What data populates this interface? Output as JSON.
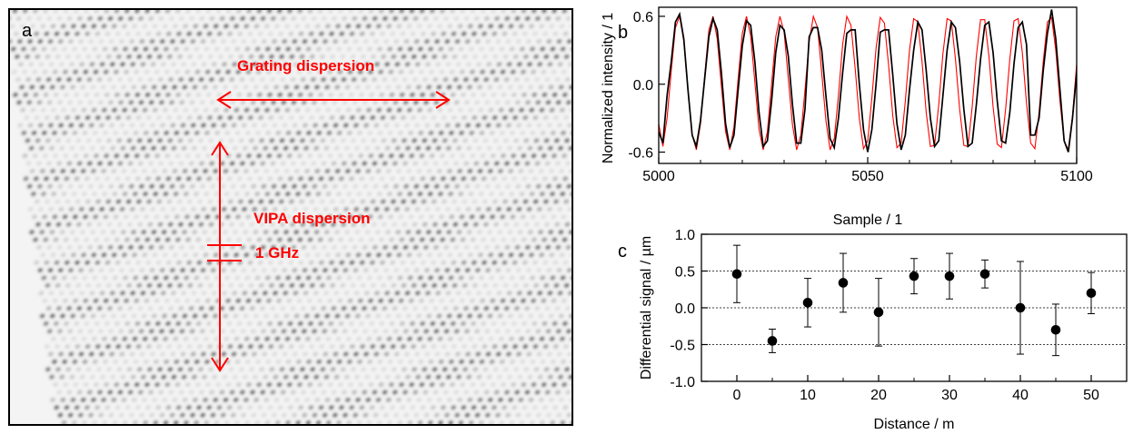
{
  "panels": {
    "a": {
      "letter": "a"
    },
    "b": {
      "letter": "b"
    },
    "c": {
      "letter": "c"
    }
  },
  "annotations": {
    "grating": "Grating dispersion",
    "vipa": "VIPA dispersion",
    "ghz": "1 GHz"
  },
  "colors": {
    "annotation": "#ff0000",
    "measured": "#000000",
    "fit": "#ff0000"
  },
  "chart_data": [
    {
      "type": "image",
      "panel": "a",
      "description_free": true
    },
    {
      "type": "line",
      "panel": "b",
      "xlabel": "Sample / 1",
      "ylabel": "Normalized intensity / 1",
      "xlim": [
        5000,
        5100
      ],
      "ylim": [
        -0.7,
        0.68
      ],
      "xticks": [
        5000,
        5050,
        5100
      ],
      "yticks": [
        -0.6,
        0.0,
        0.6
      ],
      "ytick_labels": [
        "-0.6",
        "0.0",
        "0.6"
      ],
      "period": 7.7,
      "phase_start": 5000,
      "series": [
        {
          "role": "measured",
          "x": [
            5000,
            5001,
            5002,
            5003,
            5004,
            5005,
            5006,
            5007,
            5008,
            5009,
            5010,
            5011,
            5012,
            5013,
            5014,
            5015,
            5016,
            5017,
            5018,
            5019,
            5020,
            5021,
            5022,
            5023,
            5024,
            5025,
            5026,
            5027,
            5028,
            5029,
            5030,
            5031,
            5032,
            5033,
            5034,
            5035,
            5036,
            5037,
            5038,
            5039,
            5040,
            5041,
            5042,
            5043,
            5044,
            5045,
            5046,
            5047,
            5048,
            5049,
            5050,
            5051,
            5052,
            5053,
            5054,
            5055,
            5056,
            5057,
            5058,
            5059,
            5060,
            5061,
            5062,
            5063,
            5064,
            5065,
            5066,
            5067,
            5068,
            5069,
            5070,
            5071,
            5072,
            5073,
            5074,
            5075,
            5076,
            5077,
            5078,
            5079,
            5080,
            5081,
            5082,
            5083,
            5084,
            5085,
            5086,
            5087,
            5088,
            5089,
            5090,
            5091,
            5092,
            5093,
            5094,
            5095,
            5096,
            5097,
            5098,
            5099,
            5100
          ],
          "y": [
            -0.42,
            -0.52,
            -0.1,
            0.2,
            0.55,
            0.62,
            0.4,
            -0.05,
            -0.45,
            -0.55,
            -0.32,
            0.05,
            0.42,
            0.58,
            0.48,
            0.1,
            -0.35,
            -0.56,
            -0.45,
            -0.05,
            0.34,
            0.56,
            0.52,
            0.2,
            -0.25,
            -0.55,
            -0.5,
            -0.15,
            0.28,
            0.52,
            0.48,
            0.25,
            -0.18,
            -0.52,
            -0.52,
            -0.22,
            0.42,
            0.5,
            0.5,
            0.3,
            -0.1,
            -0.48,
            -0.56,
            -0.3,
            0.1,
            0.45,
            0.48,
            0.48,
            0.0,
            -0.4,
            -0.6,
            -0.4,
            0.0,
            0.46,
            0.48,
            0.48,
            0.08,
            -0.35,
            -0.58,
            -0.45,
            -0.05,
            0.3,
            0.55,
            0.48,
            0.12,
            -0.3,
            -0.55,
            -0.5,
            -0.1,
            0.3,
            0.55,
            0.5,
            0.2,
            -0.22,
            -0.55,
            -0.52,
            -0.18,
            0.22,
            0.52,
            0.55,
            0.28,
            -0.15,
            -0.5,
            -0.52,
            -0.25,
            0.18,
            0.5,
            0.55,
            0.35,
            -0.45,
            -0.45,
            -0.3,
            0.12,
            0.45,
            0.66,
            0.4,
            -0.05,
            -0.5,
            -0.6,
            -0.3,
            0.1
          ]
        },
        {
          "role": "fit",
          "x": [
            5000,
            5001,
            5002,
            5003,
            5004,
            5005,
            5006,
            5007,
            5008,
            5009,
            5010,
            5011,
            5012,
            5013,
            5014,
            5015,
            5016,
            5017,
            5018,
            5019,
            5020,
            5021,
            5022,
            5023,
            5024,
            5025,
            5026,
            5027,
            5028,
            5029,
            5030,
            5031,
            5032,
            5033,
            5034,
            5035,
            5036,
            5037,
            5038,
            5039,
            5040,
            5041,
            5042,
            5043,
            5044,
            5045,
            5046,
            5047,
            5048,
            5049,
            5050,
            5051,
            5052,
            5053,
            5054,
            5055,
            5056,
            5057,
            5058,
            5059,
            5060,
            5061,
            5062,
            5063,
            5064,
            5065,
            5066,
            5067,
            5068,
            5069,
            5070,
            5071,
            5072,
            5073,
            5074,
            5075,
            5076,
            5077,
            5078,
            5079,
            5080,
            5081,
            5082,
            5083,
            5084,
            5085,
            5086,
            5087,
            5088,
            5089,
            5090,
            5091,
            5092,
            5093,
            5094,
            5095,
            5096,
            5097,
            5098,
            5099,
            5100
          ],
          "y": [
            -0.35,
            -0.55,
            -0.3,
            0.12,
            0.5,
            0.6,
            0.38,
            -0.05,
            -0.45,
            -0.58,
            -0.35,
            0.08,
            0.48,
            0.6,
            0.4,
            -0.02,
            -0.42,
            -0.58,
            -0.38,
            0.05,
            0.45,
            0.6,
            0.43,
            0.02,
            -0.4,
            -0.58,
            -0.42,
            0.0,
            0.42,
            0.6,
            0.46,
            0.05,
            -0.36,
            -0.58,
            -0.45,
            -0.05,
            0.38,
            0.6,
            0.5,
            0.1,
            -0.32,
            -0.58,
            -0.48,
            -0.1,
            0.35,
            0.6,
            0.52,
            0.14,
            -0.3,
            -0.57,
            -0.5,
            -0.12,
            0.32,
            0.59,
            0.54,
            0.17,
            -0.28,
            -0.56,
            -0.52,
            -0.15,
            0.3,
            0.58,
            0.55,
            0.2,
            -0.25,
            -0.55,
            -0.54,
            -0.18,
            0.27,
            0.58,
            0.56,
            0.22,
            -0.22,
            -0.54,
            -0.55,
            -0.2,
            0.25,
            0.57,
            0.57,
            0.25,
            -0.2,
            -0.53,
            -0.56,
            -0.22,
            0.22,
            0.56,
            0.58,
            0.28,
            -0.17,
            -0.52,
            -0.57,
            -0.25,
            0.2,
            0.55,
            0.59,
            0.3,
            -0.15,
            -0.5,
            -0.58,
            -0.28,
            0.18
          ]
        }
      ]
    },
    {
      "type": "scatter",
      "panel": "c",
      "xlabel": "Distance / m",
      "ylabel": "Differential signal / µm",
      "xlim": [
        -5,
        55
      ],
      "ylim": [
        -1.0,
        1.0
      ],
      "xticks": [
        0,
        10,
        20,
        30,
        40,
        50
      ],
      "yticks": [
        -1.0,
        -0.5,
        0.0,
        0.5,
        1.0
      ],
      "ytick_labels": [
        "-1.0",
        "-0.5",
        "0.0",
        "0.5",
        "1.0"
      ],
      "hlines": [
        -0.5,
        0.0,
        0.5
      ],
      "points": [
        {
          "x": 0,
          "y": 0.46,
          "err": 0.39
        },
        {
          "x": 5,
          "y": -0.45,
          "err": 0.16
        },
        {
          "x": 10,
          "y": 0.07,
          "err": 0.33
        },
        {
          "x": 15,
          "y": 0.34,
          "err": 0.4
        },
        {
          "x": 20,
          "y": -0.06,
          "err": 0.46
        },
        {
          "x": 25,
          "y": 0.43,
          "err": 0.24
        },
        {
          "x": 30,
          "y": 0.43,
          "err": 0.31
        },
        {
          "x": 35,
          "y": 0.46,
          "err": 0.19
        },
        {
          "x": 40,
          "y": 0.0,
          "err": 0.63
        },
        {
          "x": 45,
          "y": -0.3,
          "err": 0.35
        },
        {
          "x": 50,
          "y": 0.2,
          "err": 0.28
        }
      ]
    }
  ]
}
